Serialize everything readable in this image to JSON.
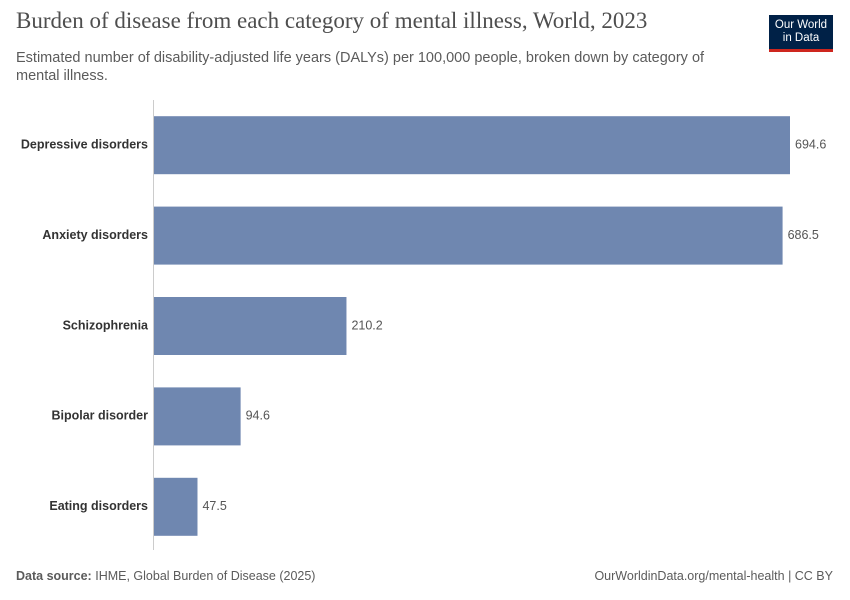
{
  "chart_data": {
    "type": "bar",
    "orientation": "horizontal",
    "title": "Burden of disease from each category of mental illness, World, 2023",
    "subtitle": "Estimated number of disability-adjusted life years (DALYs) per 100,000 people, broken down by category of mental illness.",
    "categories": [
      "Depressive disorders",
      "Anxiety disorders",
      "Schizophrenia",
      "Bipolar disorder",
      "Eating disorders"
    ],
    "values": [
      694.6,
      686.5,
      210.2,
      94.6,
      47.5
    ],
    "color": "#6f87b0"
  },
  "logo": [
    "Our World",
    "in Data"
  ],
  "source_label": "Data source:",
  "source": "IHME, Global Burden of Disease (2025)",
  "footer_url": "OurWorldinData.org/mental-health | CC BY"
}
